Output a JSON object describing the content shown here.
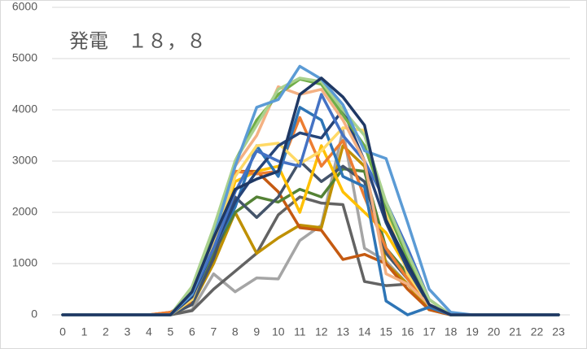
{
  "chart_data": {
    "type": "line",
    "title": "発電　１８，８",
    "categories": [
      "0",
      "1",
      "2",
      "3",
      "4",
      "5",
      "6",
      "7",
      "8",
      "9",
      "10",
      "11",
      "12",
      "13",
      "14",
      "15",
      "16",
      "17",
      "18",
      "19",
      "20",
      "21",
      "22",
      "23"
    ],
    "ylim": [
      0,
      6000
    ],
    "yticks": [
      0,
      1000,
      2000,
      3000,
      4000,
      5000,
      6000
    ],
    "grid": true,
    "series": [
      {
        "color": "#a5a5a5",
        "values": [
          0,
          0,
          0,
          0,
          0,
          0,
          100,
          800,
          450,
          720,
          700,
          1450,
          1750,
          3600,
          1300,
          1050,
          600,
          200,
          0,
          0,
          0,
          0,
          0,
          0
        ]
      },
      {
        "color": "#636363",
        "values": [
          0,
          0,
          0,
          0,
          0,
          0,
          80,
          500,
          850,
          1200,
          1950,
          2300,
          2180,
          2150,
          650,
          570,
          600,
          200,
          0,
          0,
          0,
          0,
          0,
          0
        ]
      },
      {
        "color": "#bf9000",
        "values": [
          0,
          0,
          0,
          0,
          0,
          0,
          200,
          1000,
          2000,
          1200,
          1500,
          1750,
          1700,
          3300,
          2900,
          1000,
          600,
          100,
          0,
          0,
          0,
          0,
          0,
          0
        ]
      },
      {
        "color": "#c55a11",
        "values": [
          0,
          0,
          0,
          0,
          0,
          50,
          250,
          1400,
          2800,
          2800,
          2400,
          1700,
          1650,
          1080,
          1180,
          1000,
          500,
          100,
          0,
          0,
          0,
          0,
          0,
          0
        ]
      },
      {
        "color": "#548235",
        "values": [
          0,
          0,
          0,
          0,
          0,
          0,
          300,
          1200,
          2000,
          2300,
          2200,
          2450,
          2300,
          2850,
          2800,
          1300,
          800,
          200,
          0,
          0,
          0,
          0,
          0,
          0
        ]
      },
      {
        "color": "#44546a",
        "values": [
          0,
          0,
          0,
          0,
          0,
          0,
          200,
          1100,
          2300,
          1900,
          2300,
          3000,
          2600,
          2900,
          2600,
          1200,
          700,
          200,
          0,
          0,
          0,
          0,
          0,
          0
        ]
      },
      {
        "color": "#ffc000",
        "values": [
          0,
          0,
          0,
          0,
          0,
          0,
          300,
          1300,
          2600,
          2800,
          2900,
          2000,
          3300,
          2400,
          2000,
          1600,
          900,
          200,
          0,
          0,
          0,
          0,
          0,
          0
        ]
      },
      {
        "color": "#ed7d31",
        "values": [
          0,
          0,
          0,
          0,
          0,
          50,
          300,
          1400,
          2800,
          2750,
          2800,
          3850,
          2900,
          3400,
          2300,
          1300,
          700,
          200,
          0,
          0,
          0,
          0,
          0,
          0
        ]
      },
      {
        "color": "#2e75b6",
        "values": [
          0,
          0,
          0,
          0,
          0,
          0,
          300,
          1300,
          2100,
          3300,
          2700,
          4050,
          3800,
          2700,
          2500,
          270,
          0,
          150,
          0,
          0,
          0,
          0,
          0,
          0
        ]
      },
      {
        "color": "#ffd966",
        "values": [
          0,
          0,
          0,
          0,
          0,
          0,
          300,
          1400,
          2700,
          3300,
          3350,
          2950,
          3200,
          3650,
          3600,
          2000,
          800,
          200,
          0,
          0,
          0,
          0,
          0,
          0
        ]
      },
      {
        "color": "#264478",
        "values": [
          0,
          0,
          0,
          0,
          0,
          0,
          350,
          1300,
          2200,
          2800,
          3300,
          3550,
          3450,
          4000,
          3000,
          1800,
          900,
          200,
          0,
          0,
          0,
          0,
          0,
          0
        ]
      },
      {
        "color": "#4472c4",
        "values": [
          0,
          0,
          0,
          0,
          0,
          0,
          400,
          1300,
          2400,
          3200,
          3000,
          2900,
          4300,
          3500,
          3000,
          2200,
          1300,
          300,
          0,
          0,
          0,
          0,
          0,
          0
        ]
      },
      {
        "color": "#f4b183",
        "values": [
          0,
          0,
          0,
          0,
          0,
          0,
          500,
          1600,
          2900,
          3500,
          4450,
          4300,
          4400,
          3800,
          3000,
          800,
          600,
          200,
          0,
          0,
          0,
          0,
          0,
          0
        ]
      },
      {
        "color": "#70ad47",
        "values": [
          0,
          0,
          0,
          0,
          0,
          0,
          450,
          1600,
          3000,
          3800,
          4300,
          4600,
          4500,
          3900,
          3300,
          2100,
          1100,
          300,
          0,
          0,
          0,
          0,
          0,
          0
        ]
      },
      {
        "color": "#a9d18e",
        "values": [
          0,
          0,
          0,
          0,
          0,
          0,
          550,
          1700,
          3000,
          3700,
          4400,
          4620,
          4550,
          4000,
          3500,
          2200,
          1200,
          300,
          0,
          0,
          0,
          0,
          0,
          0
        ]
      },
      {
        "color": "#5b9bd5",
        "values": [
          0,
          0,
          0,
          0,
          0,
          0,
          400,
          1500,
          2900,
          4050,
          4200,
          4850,
          4600,
          4100,
          3200,
          3050,
          1800,
          500,
          50,
          0,
          0,
          0,
          0,
          0
        ]
      },
      {
        "color": "#1f3864",
        "values": [
          0,
          0,
          0,
          0,
          0,
          0,
          450,
          1500,
          2450,
          2650,
          2800,
          4300,
          4620,
          4250,
          3700,
          1850,
          1000,
          200,
          0,
          0,
          0,
          0,
          0,
          0
        ]
      }
    ]
  }
}
